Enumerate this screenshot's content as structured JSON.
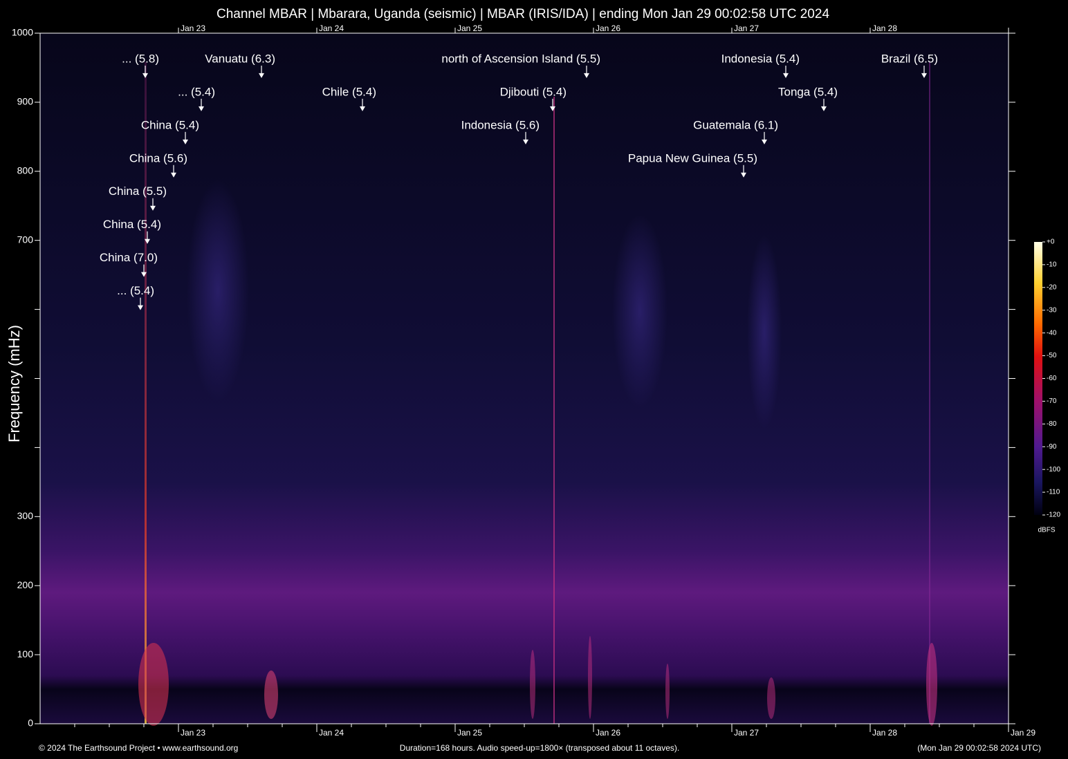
{
  "chart_data": {
    "type": "spectrogram",
    "title": "Channel MBAR | Mbarara, Uganda (seismic) | MBAR (IRIS/IDA) | ending Mon Jan 29 00:02:58 UTC 2024",
    "y_label": "Frequency (mHz)",
    "xlim": [
      22,
      29
    ],
    "xticks": [
      {
        "value": 23,
        "label": "Jan 23"
      },
      {
        "value": 24,
        "label": "Jan 24"
      },
      {
        "value": 25,
        "label": "Jan 25"
      },
      {
        "value": 26,
        "label": "Jan 26"
      },
      {
        "value": 27,
        "label": "Jan 27"
      },
      {
        "value": 28,
        "label": "Jan 28"
      },
      {
        "value": 29,
        "label": "Jan 29"
      }
    ],
    "ylim": [
      0,
      1000
    ],
    "yticks": [
      0,
      100,
      200,
      300,
      700,
      800,
      900,
      1000
    ],
    "yminorticks": [
      400,
      500,
      600
    ],
    "annotations": [
      {
        "label": "... (5.8)",
        "x": 22.76,
        "y": 935
      },
      {
        "label": "Vanuatu (6.3)",
        "x": 23.6,
        "y": 935
      },
      {
        "label": "... (5.4)",
        "x": 23.165,
        "y": 887
      },
      {
        "label": "China (5.4)",
        "x": 23.05,
        "y": 839
      },
      {
        "label": "China (5.6)",
        "x": 22.965,
        "y": 791
      },
      {
        "label": "China (5.5)",
        "x": 22.815,
        "y": 743
      },
      {
        "label": "China (5.4)",
        "x": 22.775,
        "y": 695
      },
      {
        "label": "China (7.0)",
        "x": 22.75,
        "y": 647
      },
      {
        "label": "... (5.4)",
        "x": 22.725,
        "y": 599
      },
      {
        "label": "Chile (5.4)",
        "x": 24.33,
        "y": 887
      },
      {
        "label": "north of Ascension Island (5.5)",
        "x": 25.95,
        "y": 935
      },
      {
        "label": "Djibouti (5.4)",
        "x": 25.705,
        "y": 887
      },
      {
        "label": "Indonesia (5.6)",
        "x": 25.51,
        "y": 839
      },
      {
        "label": "Indonesia (5.4)",
        "x": 27.39,
        "y": 935
      },
      {
        "label": "Tonga (5.4)",
        "x": 27.665,
        "y": 887
      },
      {
        "label": "Guatemala (6.1)",
        "x": 27.235,
        "y": 839
      },
      {
        "label": "Papua New Guinea (5.5)",
        "x": 27.085,
        "y": 791
      },
      {
        "label": "Brazil (6.5)",
        "x": 28.39,
        "y": 935
      }
    ],
    "colorbar": {
      "label": "dBFS",
      "lim": [
        0,
        -120
      ],
      "ticks": [
        {
          "value": 0,
          "label": "+0"
        },
        -10,
        -20,
        -30,
        -40,
        -50,
        -60,
        -70,
        -80,
        -90,
        -100,
        -110,
        -120
      ]
    },
    "footer_left": "© 2024 The Earthsound Project • www.earthsound.org",
    "footer_center": "Duration=168 hours. Audio speed-up=1800× (transposed about 11 octaves).",
    "footer_right": "(Mon Jan 29 00:02:58 2024 UTC)"
  }
}
